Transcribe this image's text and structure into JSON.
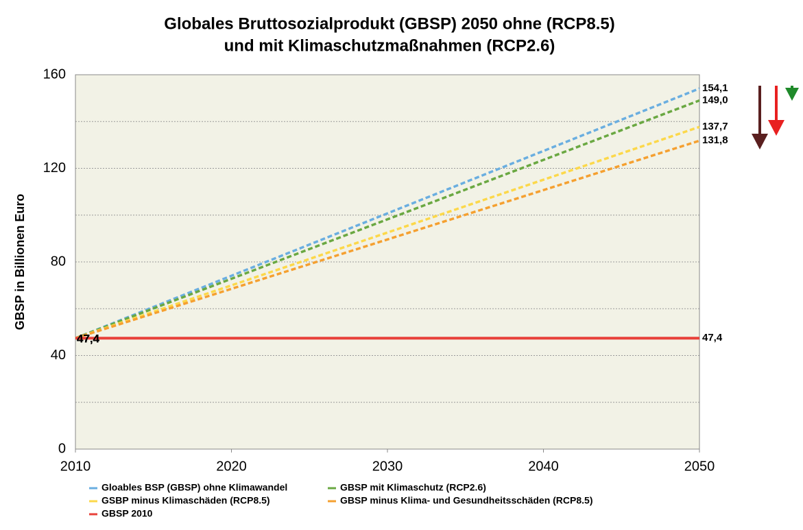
{
  "chart_data": {
    "type": "line",
    "title": [
      "Globales Bruttosozialprodukt (GBSP) 2050 ohne (RCP8.5)",
      "und mit Klimaschutzmaßnahmen (RCP2.6)"
    ],
    "y_label": "GBSP in Billionen Euro",
    "x": [
      2010,
      2050
    ],
    "xlim": [
      2010,
      2050
    ],
    "xticks": [
      2010,
      2020,
      2030,
      2040,
      2050
    ],
    "ylim": [
      0,
      160
    ],
    "yticks": [
      0,
      40,
      80,
      120,
      160
    ],
    "minor_yticks": [
      20,
      60,
      100,
      140
    ],
    "grid": true,
    "series": [
      {
        "name": "Gloables BSP (GBSP) ohne Klimawandel",
        "color": "#6aaee0",
        "dashed": true,
        "values": [
          47.4,
          154.1
        ],
        "value_labels": [
          "47,4",
          "154,1"
        ]
      },
      {
        "name": "GBSP mit Klimaschutz (RCP2.6)",
        "color": "#6aa842",
        "dashed": true,
        "values": [
          47.4,
          149.0
        ],
        "value_labels": [
          "47,4",
          "149,0"
        ]
      },
      {
        "name": "GSBP minus Klimaschäden (RCP8.5)",
        "color": "#fcd84a",
        "dashed": true,
        "values": [
          47.4,
          137.7
        ],
        "value_labels": [
          "47,4",
          "137,7"
        ]
      },
      {
        "name": "GBSP minus Klima- und Gesundheitsschäden (RCP8.5)",
        "color": "#f5a030",
        "dashed": true,
        "values": [
          47.4,
          131.8
        ],
        "value_labels": [
          "47,4",
          "131,8"
        ]
      },
      {
        "name": "GBSP 2010",
        "color": "#e8413a",
        "dashed": false,
        "values": [
          47.4,
          47.4
        ],
        "value_labels": [
          "47,4",
          "47,4"
        ]
      }
    ]
  }
}
